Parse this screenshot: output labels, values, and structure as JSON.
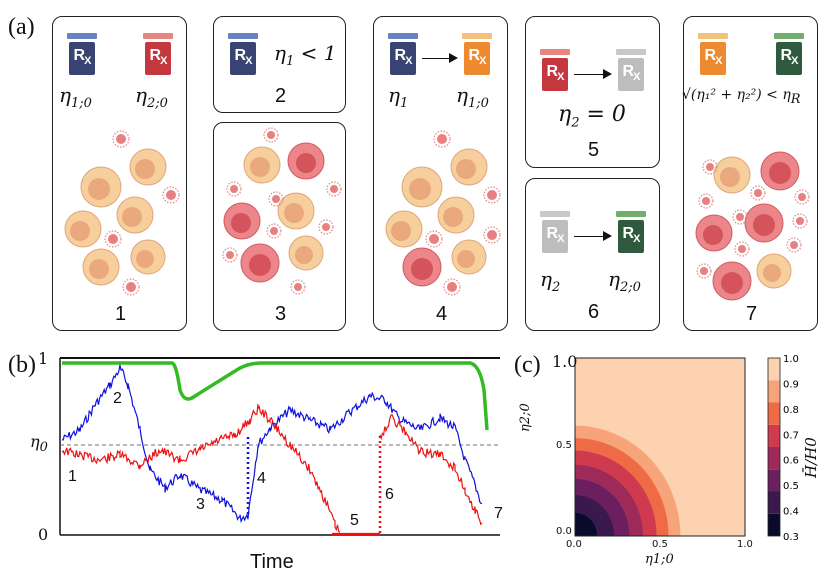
{
  "panel_labels": {
    "a": "(a)",
    "b": "(b)",
    "c": "(c)"
  },
  "colors": {
    "blue_cap": "#6a82c2",
    "blue_body": "#3a4472",
    "red_cap": "#e8857f",
    "red_body": "#c4373e",
    "orange_cap": "#f4c07a",
    "orange_body": "#ee8a30",
    "gray_cap": "#c8c8c8",
    "gray_body": "#bdbdbd",
    "green_cap": "#6fae6c",
    "green_body": "#2f5a3e",
    "healthy_cell": "#f6cf9d",
    "infected_cell": "#ec868a",
    "virus": "#e88080",
    "line_green": "#33bb22",
    "line_blue": "#1111dd",
    "line_red": "#ee1111"
  },
  "boxes": [
    {
      "number": "1",
      "eta_left": "η",
      "eta_left_sub": "1;0",
      "eta_right": "η",
      "eta_right_sub": "2;0"
    },
    {
      "number": "2",
      "condition": "η",
      "condition_sub": "1",
      "condition_rest": " < 1"
    },
    {
      "number": "3"
    },
    {
      "number": "4",
      "eta_left": "η",
      "eta_left_sub": "1",
      "eta_right": "η",
      "eta_right_sub": "1;0"
    },
    {
      "number": "5",
      "condition": "η",
      "condition_sub": "2",
      "condition_rest": " = 0"
    },
    {
      "number": "6",
      "eta_left": "η",
      "eta_left_sub": "2",
      "eta_right": "η",
      "eta_right_sub": "2;0"
    },
    {
      "number": "7",
      "condition": "√(η₁² + η₂²) < η",
      "condition_sub": "R"
    }
  ],
  "rx_label": "R",
  "rx_sub": "X",
  "chart_b": {
    "type": "line",
    "xlabel": "Time",
    "ytick_top": "1",
    "ytick_mid": "η",
    "ytick_mid_sub": "0",
    "ytick_bottom": "0",
    "annotations": [
      "1",
      "2",
      "3",
      "4",
      "5",
      "6",
      "7"
    ],
    "series": [
      {
        "name": "green",
        "note": "fraction healthy"
      },
      {
        "name": "blue",
        "note": "eta1"
      },
      {
        "name": "red",
        "note": "eta2"
      }
    ]
  },
  "chart_data": {
    "type": "heatmap",
    "title": "",
    "xlabel": "η1;0",
    "ylabel": "η2;0",
    "xlim": [
      0.0,
      1.0
    ],
    "ylim": [
      0.0,
      1.0
    ],
    "xticks": [
      "0.0",
      "0.5",
      "1.0"
    ],
    "yticks": [
      "0.0",
      "0.5",
      "1.0"
    ],
    "colorbar_label": "H̄/H0",
    "colorbar_ticks": [
      "1.0",
      "0.9",
      "0.8",
      "0.7",
      "0.6",
      "0.5",
      "0.4",
      "0.3"
    ],
    "contour_levels": [
      0.3,
      0.4,
      0.5,
      0.6,
      0.7,
      0.8,
      0.9,
      1.0
    ],
    "contour_radii": [
      0.13,
      0.23,
      0.32,
      0.4,
      0.48,
      0.55,
      0.62
    ],
    "level_colors": [
      "#0a0a2a",
      "#3a1a4e",
      "#6b1f5e",
      "#9e2a5a",
      "#cf3a4f",
      "#ef6b45",
      "#f7a47a",
      "#fcd2b0"
    ]
  }
}
